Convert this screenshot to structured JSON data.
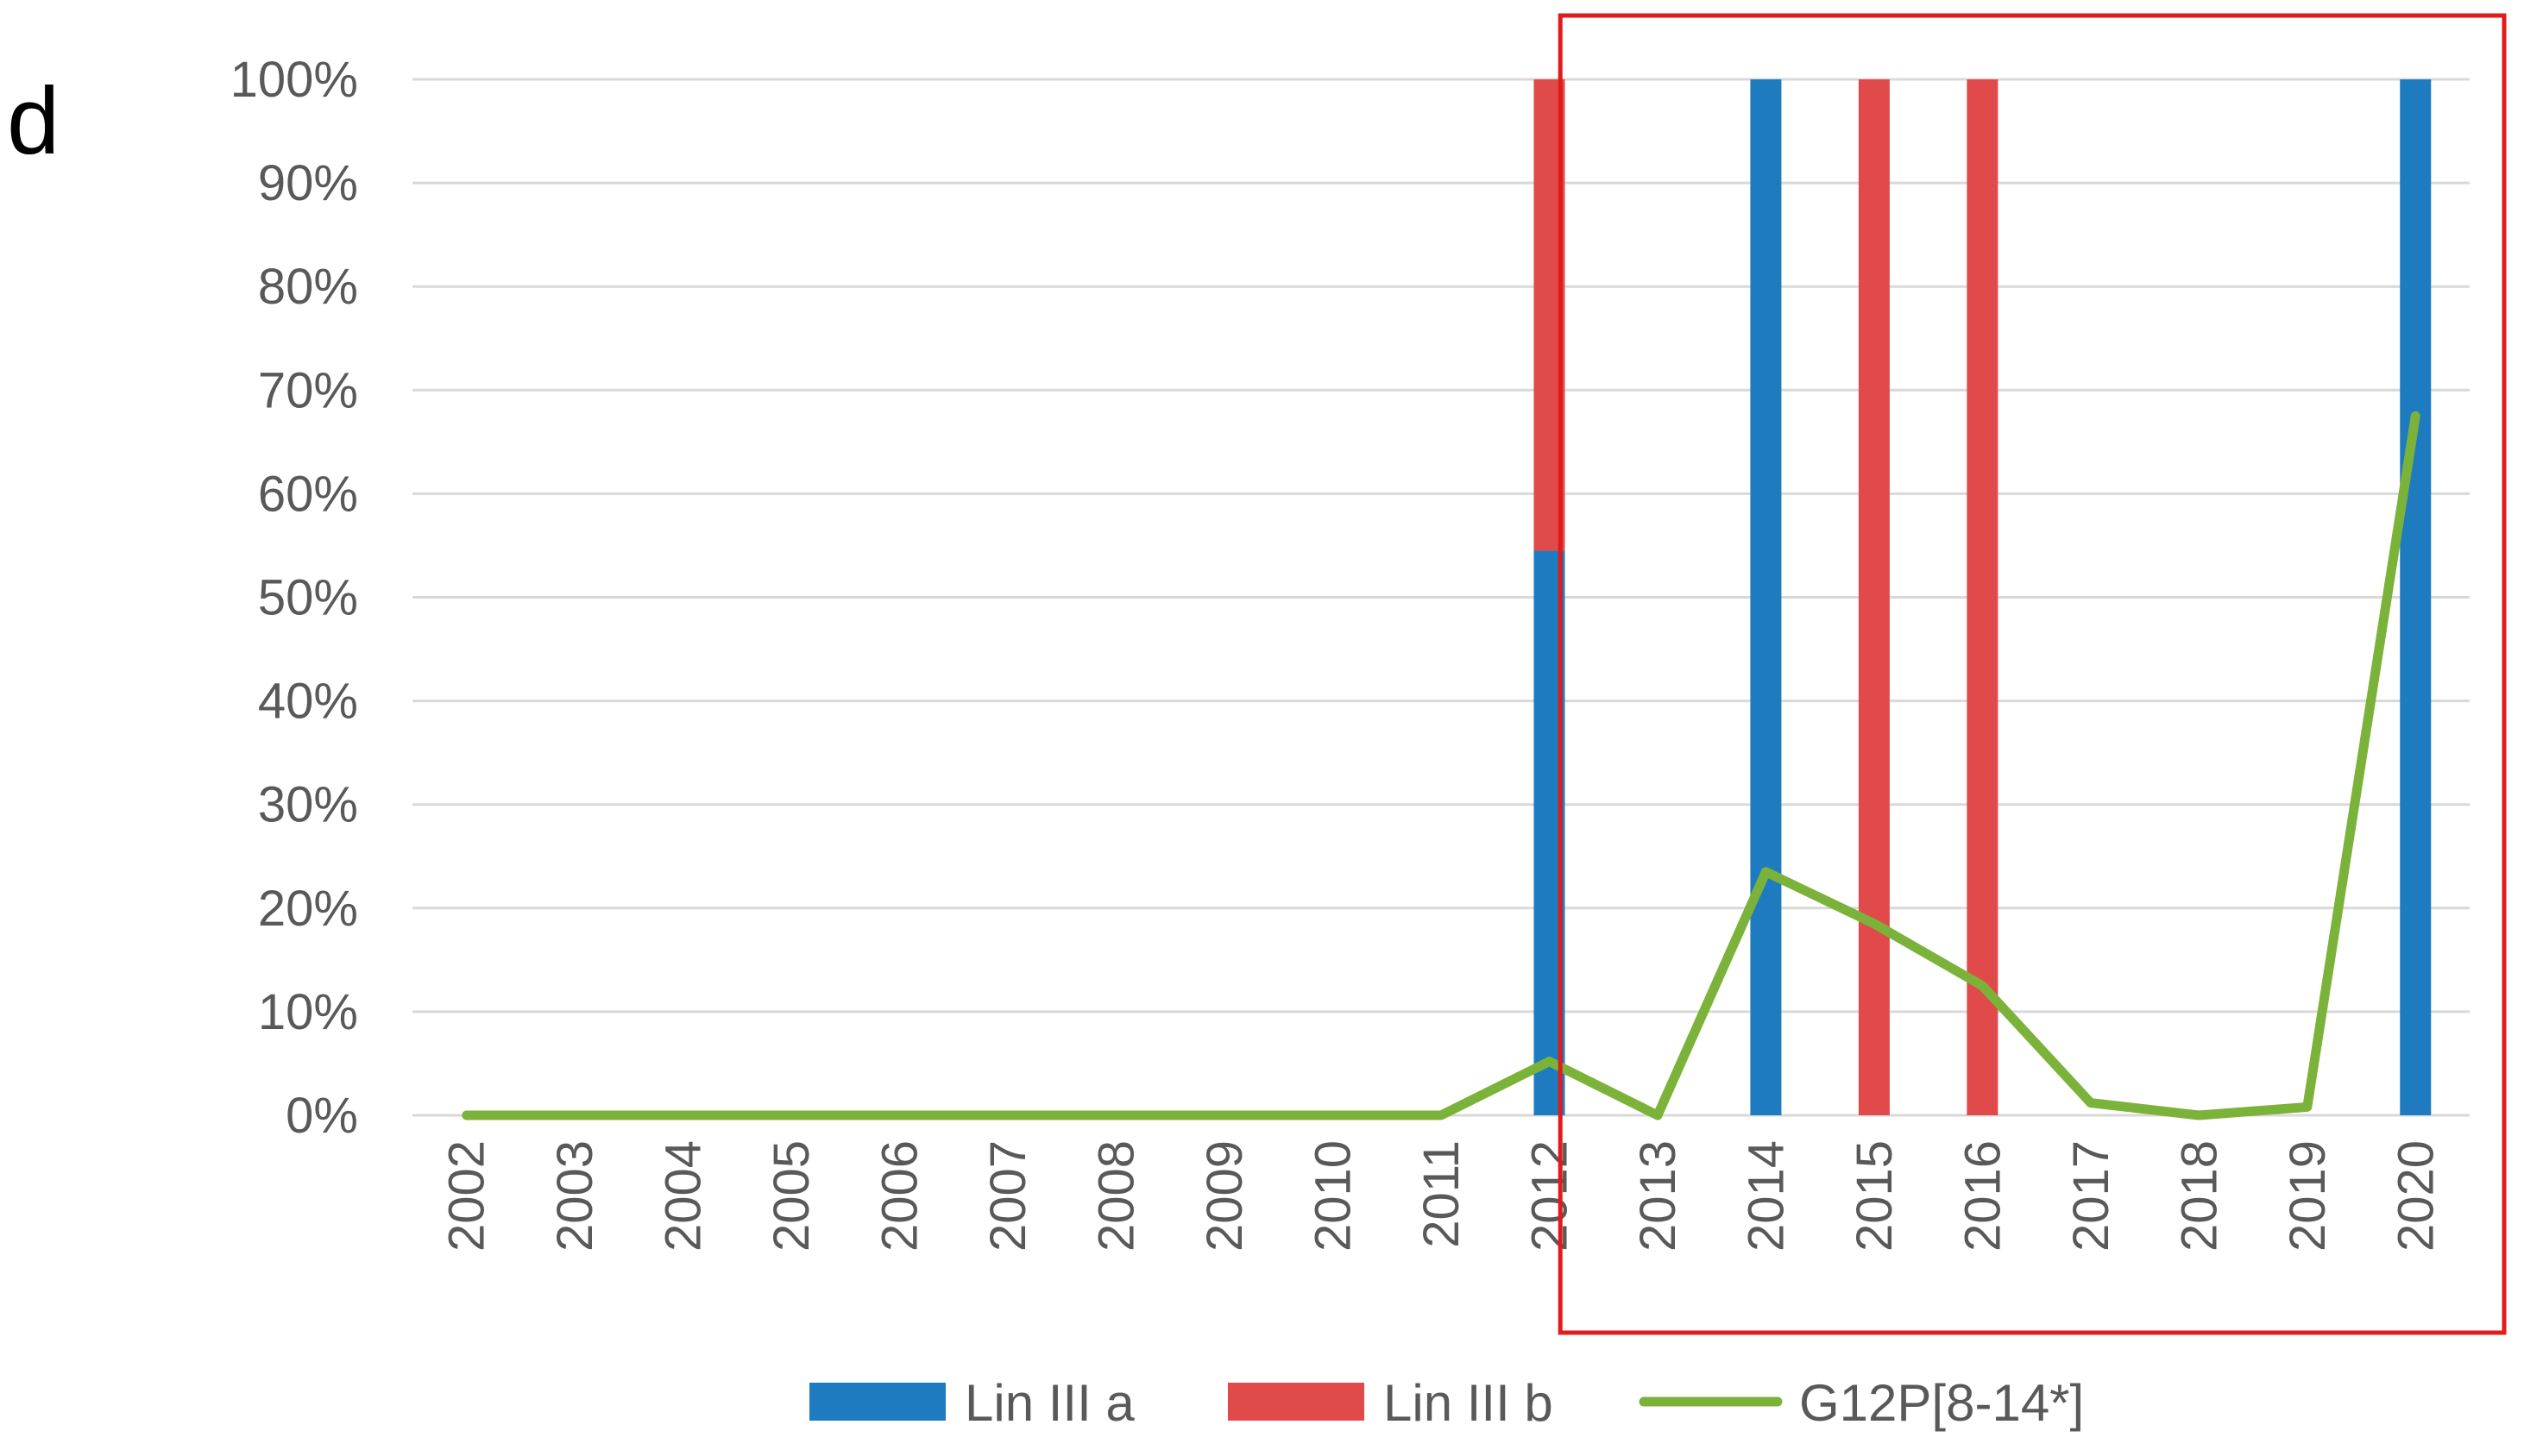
{
  "panel_label": "d",
  "colors": {
    "lin_iii_a": "#1f7bbf",
    "lin_iii_b": "#e04a4a",
    "g12": "#7bb33a",
    "highlight_box": "#e01b1b",
    "gridline": "#d9d9d9",
    "tick_text": "#595959"
  },
  "chart_data": {
    "type": "bar",
    "stacked": true,
    "categories": [
      "2002",
      "2003",
      "2004",
      "2005",
      "2006",
      "2007",
      "2008",
      "2009",
      "2010",
      "2011",
      "2012",
      "2013",
      "2014",
      "2015",
      "2016",
      "2017",
      "2018",
      "2019",
      "2020"
    ],
    "series": [
      {
        "name": "Lin III a",
        "type": "bar",
        "color": "#1f7bbf",
        "values": [
          0,
          0,
          0,
          0,
          0,
          0,
          0,
          0,
          0,
          0,
          54.5,
          0,
          100,
          0,
          0,
          0,
          0,
          0,
          100
        ]
      },
      {
        "name": "Lin III b",
        "type": "bar",
        "color": "#e04a4a",
        "values": [
          0,
          0,
          0,
          0,
          0,
          0,
          0,
          0,
          0,
          0,
          45.5,
          0,
          0,
          100,
          100,
          0,
          0,
          0,
          0
        ]
      },
      {
        "name": "G12P[8-14*]",
        "type": "line",
        "color": "#7bb33a",
        "values": [
          0,
          0,
          0,
          0,
          0,
          0,
          0,
          0,
          0,
          0,
          5.2,
          0,
          23.5,
          18.5,
          12.5,
          1.2,
          0,
          0.8,
          67.5
        ]
      }
    ],
    "yticks": [
      "0%",
      "10%",
      "20%",
      "30%",
      "40%",
      "50%",
      "60%",
      "70%",
      "80%",
      "90%",
      "100%"
    ],
    "ylim": [
      0,
      100
    ],
    "grid": true,
    "legend_position": "bottom",
    "highlight_range": [
      "2013",
      "2020"
    ]
  }
}
